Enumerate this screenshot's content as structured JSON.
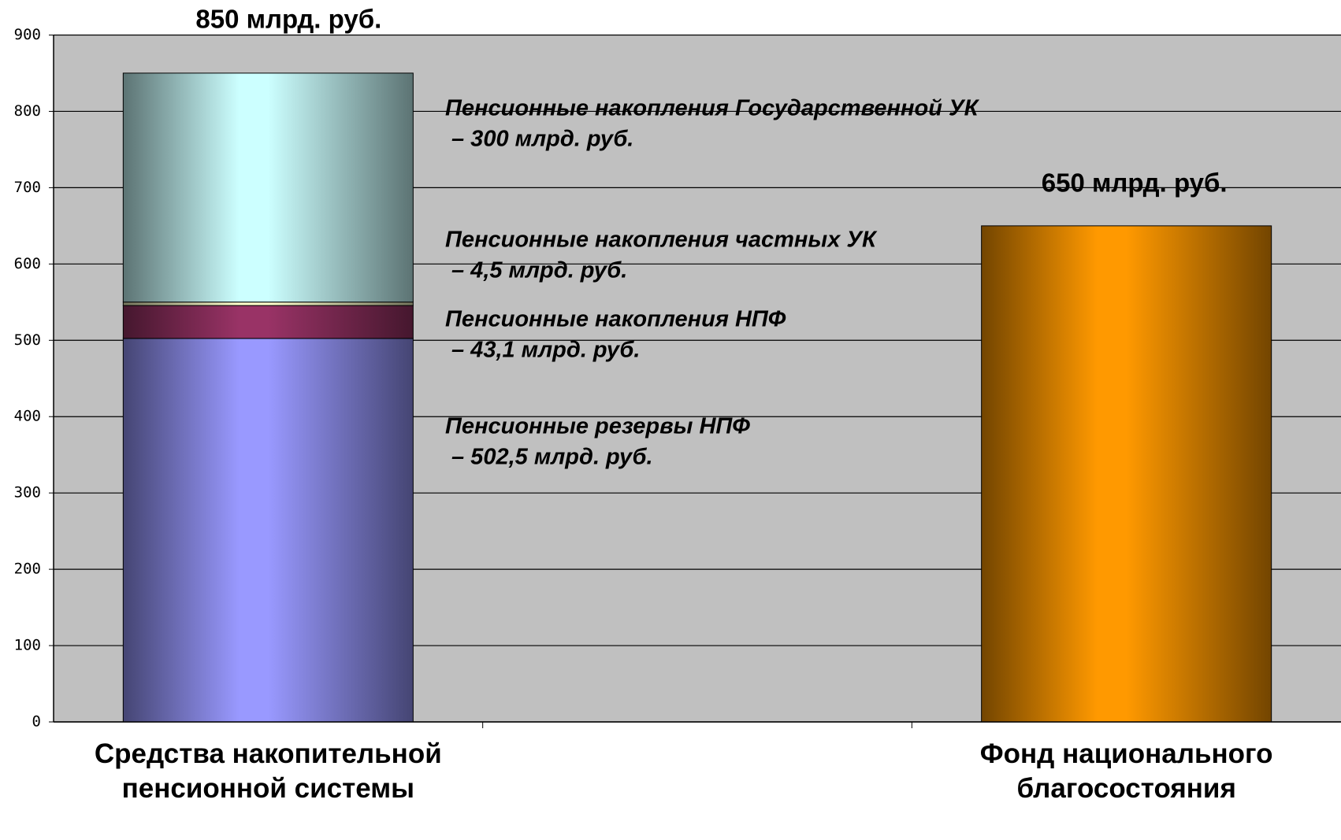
{
  "chart_data": {
    "type": "stacked_bar",
    "categories": [
      "Средства накопительной пенсионной системы",
      null,
      "Фонд национального благосостояния"
    ],
    "series": [
      {
        "name": "Пенсионные резервы НПФ",
        "color": "#9999ff",
        "values": [
          502.5,
          null,
          null
        ],
        "value_labels": [
          "– 502,5 млрд. руб.",
          null,
          null
        ]
      },
      {
        "name": "Пенсионные накопления НПФ",
        "color": "#993366",
        "values": [
          43.1,
          null,
          null
        ],
        "value_labels": [
          "– 43,1 млрд. руб.",
          null,
          null
        ]
      },
      {
        "name": "Пенсионные накопления частных УК",
        "color": "#ffffcc",
        "values": [
          4.5,
          null,
          null
        ],
        "value_labels": [
          "– 4,5 млрд. руб.",
          null,
          null
        ]
      },
      {
        "name": "Пенсионные накопления Государственной УК",
        "color": "#ccffff",
        "values": [
          300,
          null,
          null
        ],
        "value_labels": [
          "– 300 млрд. руб.",
          null,
          null
        ]
      },
      {
        "color": "#ff9900",
        "values": [
          null,
          null,
          650
        ],
        "value_labels": [
          null,
          null,
          "650 млрд. руб."
        ]
      }
    ],
    "annotations": [
      "850 млрд. руб."
    ],
    "ylim": [
      0,
      900
    ],
    "yticks": [
      0,
      100,
      200,
      300,
      400,
      500,
      600,
      700,
      800,
      900
    ],
    "grid": true,
    "background": "#c0c0c0"
  }
}
